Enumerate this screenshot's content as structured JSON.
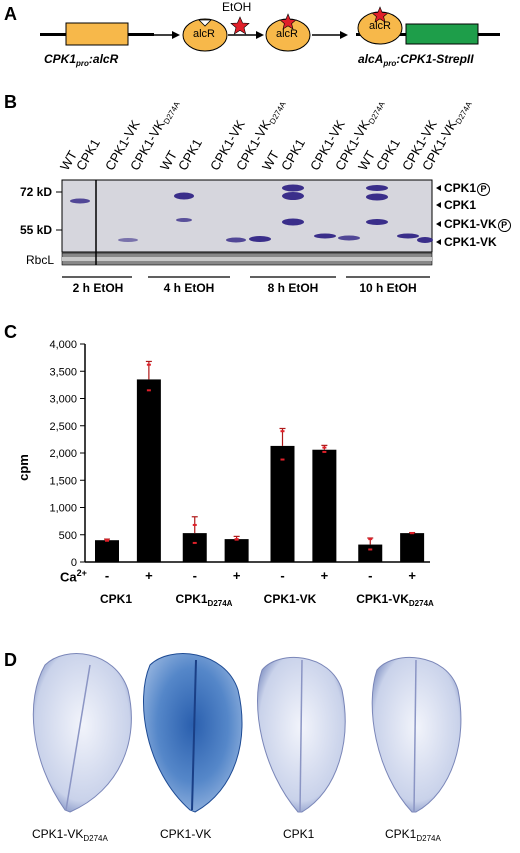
{
  "panels": {
    "a": "A",
    "b": "B",
    "c": "C",
    "d": "D"
  },
  "panel_a": {
    "construct1": "CPK1pro:alcR",
    "construct1_main": "CPK1",
    "construct1_sub": "pro",
    "construct1_rest": ":alcR",
    "inducer": "EtOH",
    "protein_label": "alcR",
    "construct2_main": "alcA",
    "construct2_sub": "pro",
    "construct2_rest": ":CPK1-StrepII",
    "colors": {
      "orange": "#f7b84a",
      "green": "#1e9e4a",
      "star": "#e0202a"
    }
  },
  "panel_b": {
    "lanes": [
      "WT",
      "CPK1",
      "CPK1-VK",
      "CPK1-VKD274A",
      "WT",
      "CPK1",
      "CPK1-VK",
      "CPK1-VKD274A",
      "WT",
      "CPK1",
      "CPK1-VK",
      "CPK1-VKD274A",
      "WT",
      "CPK1",
      "CPK1-VK",
      "CPK1-VKD274A"
    ],
    "mw_markers": [
      "72 kD",
      "55 kD"
    ],
    "loading_control": "RbcL",
    "band_labels": [
      "CPK1(P)",
      "CPK1",
      "CPK1-VK(P)",
      "CPK1-VK"
    ],
    "band_label_cpk1p": "CPK1",
    "band_label_cpk1": "CPK1",
    "band_label_vkp": "CPK1-VK",
    "band_label_vk": "CPK1-VK",
    "phospho_symbol": "P",
    "timepoints": [
      "2 h EtOH",
      "4 h EtOH",
      "8 h EtOH",
      "10 h EtOH"
    ]
  },
  "chart_data": {
    "type": "bar",
    "ylabel": "cpm",
    "ylim": [
      0,
      4000
    ],
    "yticks": [
      "0",
      "500",
      "1,000",
      "1,500",
      "2,000",
      "2,500",
      "3,000",
      "3,500",
      "4,000"
    ],
    "x_row_label": "Ca2+",
    "ca_labels": [
      "-",
      "+",
      "-",
      "+",
      "-",
      "+",
      "-",
      "+"
    ],
    "groups": [
      "CPK1",
      "CPK1D274A",
      "CPK1-VK",
      "CPK1-VKD274A"
    ],
    "values": [
      400,
      3350,
      530,
      420,
      2130,
      2060,
      320,
      530
    ],
    "errors": [
      20,
      330,
      300,
      50,
      320,
      80,
      120,
      10
    ],
    "replicate_points": [
      [
        400,
        390
      ],
      [
        3620,
        3150
      ],
      [
        680,
        350
      ],
      [
        420,
        410
      ],
      [
        2400,
        1880
      ],
      [
        2100,
        2020
      ],
      [
        420,
        230
      ],
      [
        530,
        530
      ]
    ],
    "bar_color": "#000000",
    "point_color": "#e0202a"
  },
  "panel_d": {
    "leaves": [
      "CPK1-VKD274A",
      "CPK1-VK",
      "CPK1",
      "CPK1D274A"
    ]
  }
}
